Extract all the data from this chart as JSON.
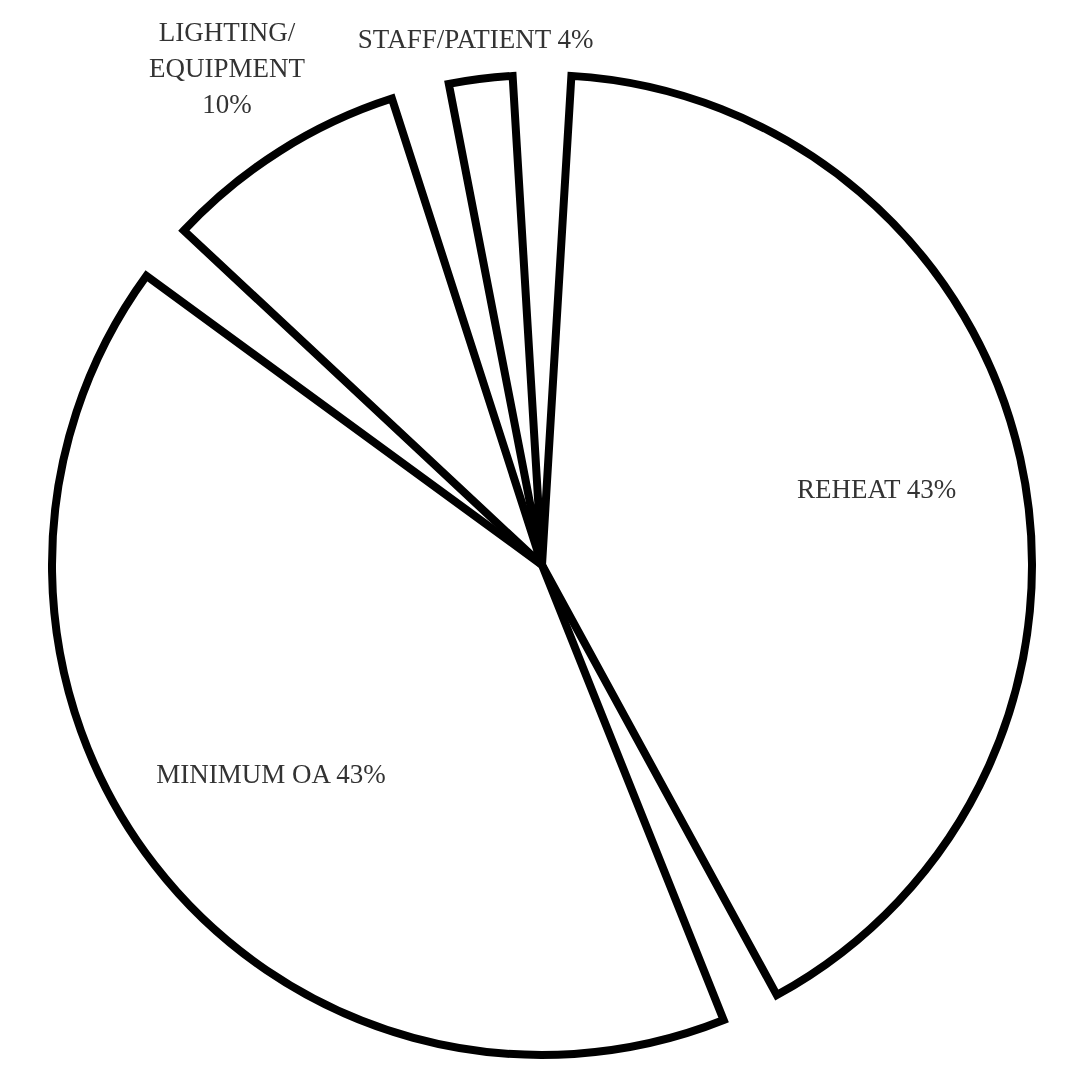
{
  "chart_data": {
    "type": "pie",
    "categories": [
      "REHEAT",
      "MINIMUM OA",
      "LIGHTING/EQUIPMENT",
      "STAFF/PATIENT"
    ],
    "values": [
      43,
      43,
      10,
      4
    ],
    "value_labels": [
      "43%",
      "43%",
      "10%",
      "4%"
    ],
    "colors": [
      "#ffffff",
      "#ffffff",
      "#ffffff",
      "#ffffff"
    ]
  }
}
